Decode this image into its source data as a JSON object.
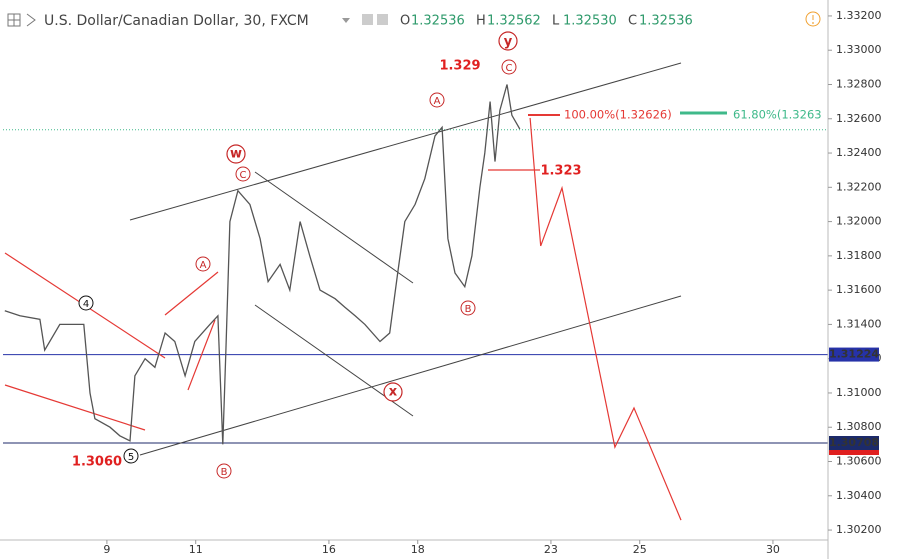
{
  "header": {
    "symbol": "U.S. Dollar/Canadian Dollar, 30, FXCM",
    "ohlc": [
      {
        "key": "O",
        "value": "1.32536"
      },
      {
        "key": "H",
        "value": "1.32562"
      },
      {
        "key": "L",
        "value": "1.32530"
      },
      {
        "key": "C",
        "value": "1.32536"
      }
    ]
  },
  "chart_data": {
    "type": "line",
    "x": [
      -2.3,
      -1.96,
      -1.51,
      -1.4,
      -1.06,
      -0.52,
      -0.38,
      -0.27,
      0.07,
      0.29,
      0.52,
      0.63,
      0.86,
      1.08,
      1.31,
      1.53,
      1.76,
      1.98,
      2.32,
      2.5,
      2.61,
      2.68,
      2.77,
      2.95,
      3.22,
      3.45,
      3.63,
      3.9,
      4.12,
      4.35,
      4.57,
      4.8,
      5.14,
      5.36,
      5.59,
      5.81,
      6.15,
      6.37,
      6.55,
      6.71,
      6.94,
      7.16,
      7.39,
      7.55,
      7.68,
      7.84,
      8.06,
      8.22,
      8.4,
      8.51,
      8.63,
      8.74,
      8.85,
      9.01,
      9.12,
      9.3
    ],
    "series": [
      {
        "color": "#555555",
        "values": [
          1.3148,
          1.3145,
          1.3143,
          1.3125,
          1.314,
          1.314,
          1.31,
          1.3085,
          1.308,
          1.3075,
          1.3072,
          1.311,
          1.312,
          1.3115,
          1.3135,
          1.313,
          1.311,
          1.313,
          1.314,
          1.3145,
          1.307,
          1.3125,
          1.32,
          1.3218,
          1.321,
          1.319,
          1.3165,
          1.3175,
          1.316,
          1.32,
          1.318,
          1.316,
          1.3155,
          1.315,
          1.3145,
          1.314,
          1.313,
          1.3135,
          1.317,
          1.32,
          1.321,
          1.3225,
          1.325,
          1.3255,
          1.319,
          1.317,
          1.3162,
          1.318,
          1.322,
          1.324,
          1.327,
          1.3235,
          1.3265,
          1.328,
          1.3262,
          1.3254
        ]
      }
    ],
    "projection": {
      "color": "#e53935",
      "x": [
        9.53,
        9.77,
        10.25,
        11.44,
        11.87,
        12.93
      ],
      "values": [
        1.32605,
        1.31858,
        1.32196,
        1.30684,
        1.30912,
        1.30258
      ]
    },
    "current": {
      "value": 1.32536,
      "color": "#3fb98a"
    },
    "levels": [
      {
        "value": 1.31224,
        "label": "1.31224",
        "color": "#2632a8"
      },
      {
        "value": 1.30708,
        "label": "1.30708",
        "color": "#1c2a6a"
      }
    ],
    "xlim": [
      -2.34,
      16.24
    ],
    "xticks": [
      {
        "value": 0,
        "label": "9"
      },
      {
        "value": 2,
        "label": "11"
      },
      {
        "value": 5,
        "label": "16"
      },
      {
        "value": 7,
        "label": "18"
      },
      {
        "value": 10,
        "label": "23"
      },
      {
        "value": 12,
        "label": "25"
      },
      {
        "value": 15,
        "label": "30"
      }
    ],
    "ylim": [
      1.30142,
      1.33293
    ],
    "yticks": [
      {
        "value": 1.302,
        "label": "1.30200"
      },
      {
        "value": 1.304,
        "label": "1.30400"
      },
      {
        "value": 1.306,
        "label": "1.30600"
      },
      {
        "value": 1.308,
        "label": "1.30800"
      },
      {
        "value": 1.31,
        "label": "1.31000"
      },
      {
        "value": 1.312,
        "label": "1.31200"
      },
      {
        "value": 1.314,
        "label": "1.31400"
      },
      {
        "value": 1.316,
        "label": "1.31600"
      },
      {
        "value": 1.318,
        "label": "1.31800"
      },
      {
        "value": 1.32,
        "label": "1.32000"
      },
      {
        "value": 1.322,
        "label": "1.32200"
      },
      {
        "value": 1.324,
        "label": "1.32400"
      },
      {
        "value": 1.326,
        "label": "1.32600"
      },
      {
        "value": 1.328,
        "label": "1.32800"
      },
      {
        "value": 1.33,
        "label": "1.33000"
      },
      {
        "value": 1.332,
        "label": "1.33200"
      }
    ],
    "annotations": [
      "1.329",
      "1.323",
      "1.3060",
      "100.00%(1.32626)",
      "61.80%(1.3263"
    ],
    "waves": [
      "y",
      "w",
      "x",
      "C",
      "A",
      "C",
      "A",
      "B",
      "B",
      "4",
      "5"
    ]
  }
}
